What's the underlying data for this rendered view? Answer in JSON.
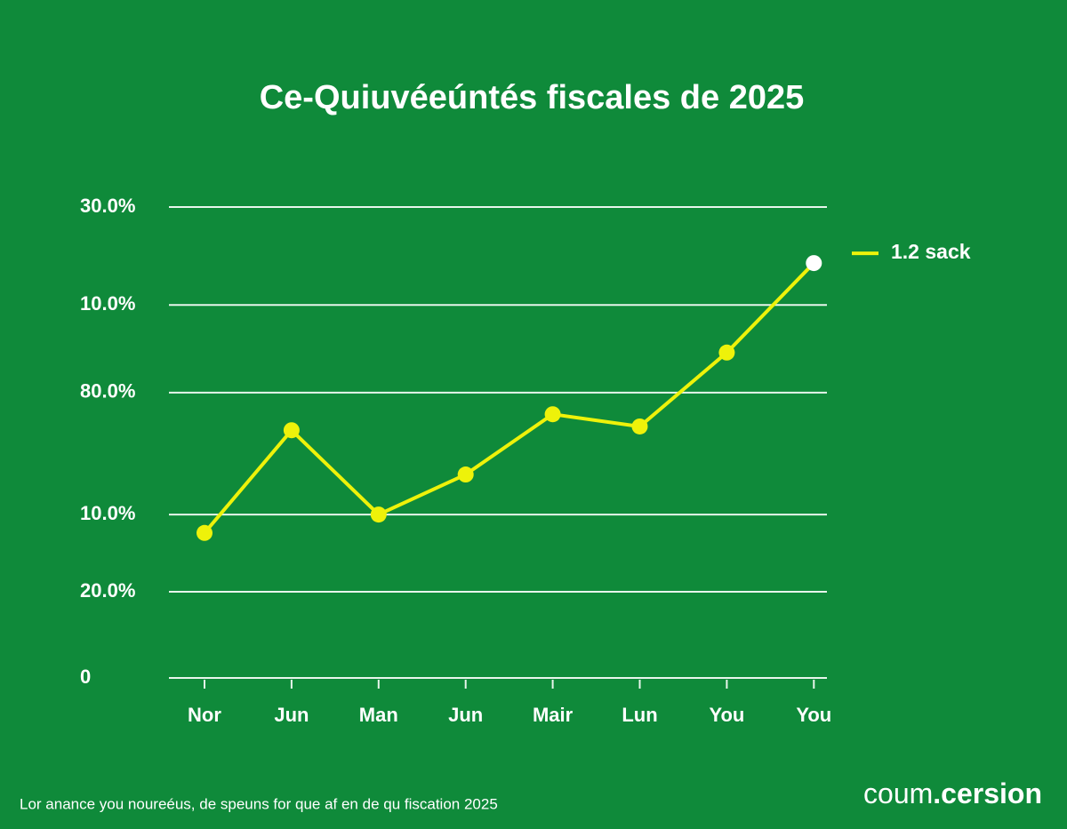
{
  "chart_data": {
    "type": "line",
    "title": "Ce-Quiuvéeúntés fiscales de 2025",
    "categories": [
      "Nor",
      "Jun",
      "Man",
      "Jun",
      "Mair",
      "Lun",
      "You",
      "You"
    ],
    "series": [
      {
        "name": "1.2 sack",
        "color": "#eef20a",
        "last_point_color": "#ffffff",
        "values": [
          30.8,
          52.6,
          34.7,
          43.2,
          56.0,
          53.4,
          69.1,
          88.1
        ]
      }
    ],
    "ylim": [
      0,
      100
    ],
    "yticks": [
      0,
      {
        "value": 18.3,
        "label": "20.0%"
      },
      {
        "value": 34.7,
        "label": "10.0%"
      },
      {
        "value": 60.6,
        "label": "80.0%"
      },
      {
        "value": 79.2,
        "label": "10.0%"
      },
      {
        "value": 100,
        "label": "30.0%"
      }
    ],
    "grid": true,
    "caption": "Lor anance you noureéus, de speuns for que af en de qu fiscation 2025",
    "brand": {
      "prefix": "coum",
      "suffix": ".cersion"
    }
  }
}
